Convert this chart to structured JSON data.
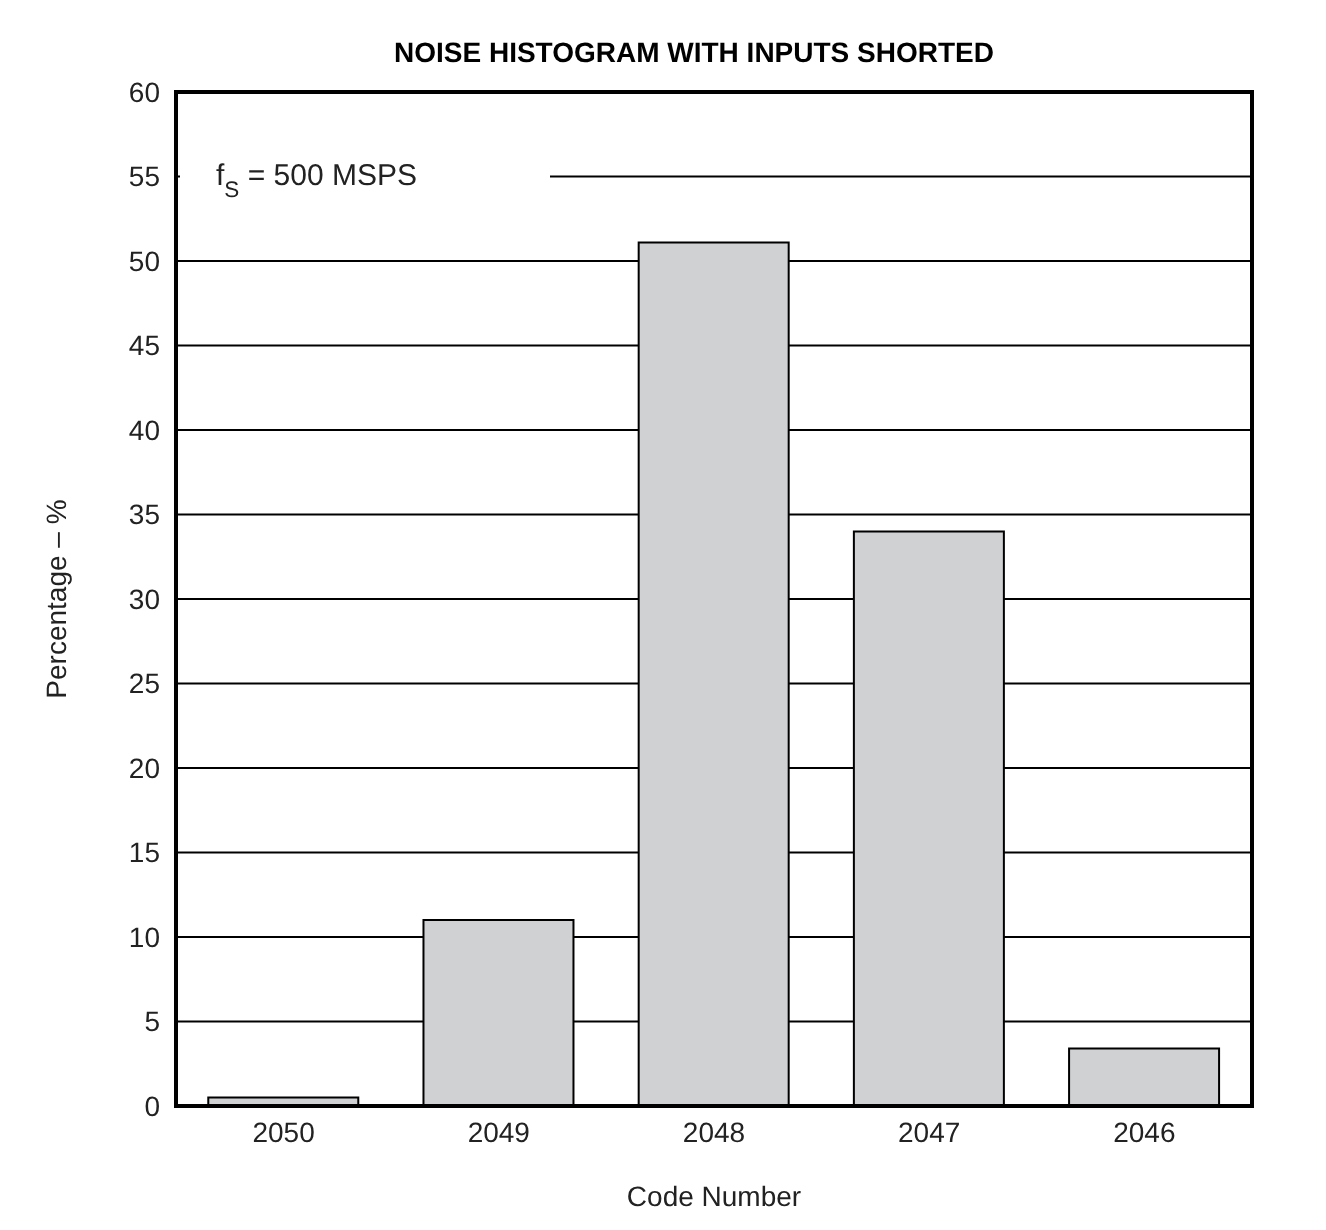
{
  "chart_data": {
    "type": "bar",
    "title": "NOISE HISTOGRAM WITH INPUTS SHORTED",
    "xlabel": "Code Number",
    "ylabel": "Percentage – %",
    "categories": [
      "2050",
      "2049",
      "2048",
      "2047",
      "2046"
    ],
    "values": [
      0.5,
      11,
      51.1,
      34,
      3.4
    ],
    "color": "#d0d1d3",
    "ylim": [
      0,
      60
    ],
    "yticks": [
      0,
      5,
      10,
      15,
      20,
      25,
      30,
      35,
      40,
      45,
      50,
      55,
      60
    ],
    "grid": "y",
    "annotations": [
      "f$_{S}$ = 500 MSPS"
    ]
  }
}
